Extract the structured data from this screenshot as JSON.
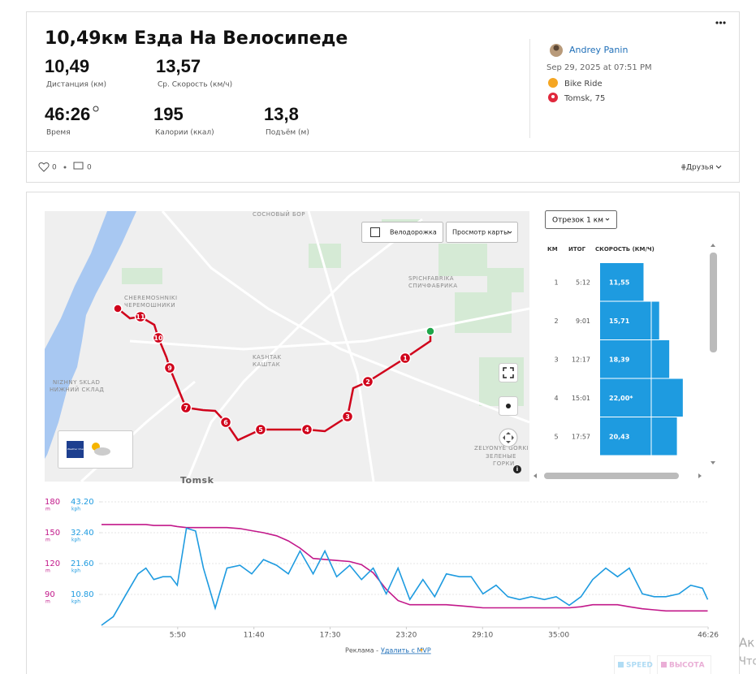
{
  "header": {
    "title": "10,49км Езда На Велосипеде",
    "stats": [
      {
        "value": "10,49",
        "label": "Дистанция (км)"
      },
      {
        "value": "13,57",
        "label": "Ср. Скорость (км/ч)"
      },
      {
        "value": "46:26",
        "label": "Время"
      },
      {
        "value": "195",
        "label": "Калории (ккал)"
      },
      {
        "value": "13,8",
        "label": "Подъём (м)"
      }
    ]
  },
  "athlete": {
    "name": "Andrey Panin",
    "date": "Sep 29, 2025 at 07:51 PM",
    "activity": "Bike Ride",
    "location": "Tomsk, 75"
  },
  "social": {
    "likes": "0",
    "comments": "0",
    "privacy": "Друзья"
  },
  "map": {
    "buttons": [
      "Велодорожка",
      "Просмотр карты"
    ],
    "places": [
      "СОСНОВЫЙ БОР",
      "CHEREMOSHNIKI",
      "ЧЕРЕМОШНИКИ",
      "SPICHFABRIKA",
      "СПИЧФАБРИКА",
      "KASHTAK",
      "КАШТАК",
      "NIZHNY SKLAD",
      "НИЖНИЙ СКЛАД",
      "ZELYONYE GORKI",
      "ЗЕЛЕНЫЕ",
      "ГОРКИ",
      "Tomsk"
    ],
    "markers": [
      "1",
      "2",
      "3",
      "4",
      "5",
      "6",
      "7",
      "9",
      "10",
      "11"
    ],
    "weather": "The Weather Channel"
  },
  "splits": {
    "selector": "Отрезок 1 км",
    "headers": [
      "КМ",
      "ИТОГ",
      "СКОРОСТЬ (КМ/Ч)"
    ],
    "km": [
      1,
      2,
      3,
      4,
      5
    ],
    "time": [
      "5:12",
      "9:01",
      "12:17",
      "15:01",
      "17:57"
    ],
    "speed": [
      11.55,
      15.71,
      18.39,
      22.0,
      20.43
    ],
    "speed_labels": [
      "11,55",
      "15,71",
      "18,39",
      "22,00*",
      "20,43"
    ]
  },
  "chart_data": {
    "type": "line",
    "x": [
      0,
      0.9,
      1.9,
      2.8,
      3.4,
      4.0,
      4.7,
      5.3,
      5.8,
      6.5,
      7.2,
      7.8,
      8.7,
      9.6,
      10.6,
      11.5,
      12.4,
      13.4,
      14.3,
      15.2,
      16.2,
      17.1,
      18.0,
      19.0,
      19.9,
      20.8,
      21.8,
      22.7,
      23.6,
      24.6,
      25.5,
      26.4,
      27.4,
      28.3,
      29.2,
      30.2,
      31.1,
      32.0,
      32.9,
      33.9,
      34.8,
      35.8,
      36.7,
      37.6,
      38.6,
      39.5,
      40.4,
      41.4,
      42.3,
      43.2,
      44.2,
      45.1,
      46.0,
      46.4
    ],
    "xlim": [
      0,
      46.43
    ],
    "xticks": [
      {
        "value": 5.833,
        "label": "5:50"
      },
      {
        "value": 11.667,
        "label": "11:40"
      },
      {
        "value": 17.5,
        "label": "17:30"
      },
      {
        "value": 23.333,
        "label": "23:20"
      },
      {
        "value": 29.167,
        "label": "29:10"
      },
      {
        "value": 35,
        "label": "35:00"
      },
      {
        "value": 46.433,
        "label": "46:26"
      }
    ],
    "ylim": [
      60,
      180
    ],
    "yticks": [
      90,
      120,
      150,
      180
    ],
    "y_unit": "m",
    "y2lim": [
      0,
      43.2
    ],
    "y2ticks": [
      {
        "value": 10.8,
        "label": "10.80"
      },
      {
        "value": 21.6,
        "label": "21.60"
      },
      {
        "value": 32.4,
        "label": "32.40"
      },
      {
        "value": 43.2,
        "label": "43.20"
      }
    ],
    "y2_unit": "kph",
    "grid": true,
    "series": [
      {
        "name": "ВЫСОТА",
        "color": "#c2188a",
        "values": [
          158,
          158,
          158,
          158,
          158,
          157,
          157,
          157,
          156,
          155,
          155,
          155,
          155,
          155,
          154,
          152,
          150,
          147,
          142,
          135,
          125,
          124,
          123,
          122,
          119,
          111,
          95,
          84,
          80,
          80,
          80,
          80,
          79,
          78,
          77,
          77,
          77,
          77,
          77,
          77,
          77,
          77,
          78,
          80,
          80,
          80,
          78,
          76,
          75,
          74,
          74,
          74,
          74,
          74
        ]
      },
      {
        "name": "SPEED",
        "color": "#1e9be0",
        "axis": "y2",
        "values": [
          0,
          3,
          11,
          18,
          20,
          16,
          17,
          17,
          14,
          34,
          33,
          20,
          6,
          20,
          21,
          18,
          23,
          21,
          18,
          26,
          18,
          26,
          17,
          21,
          16,
          20,
          11,
          20,
          9,
          16,
          10,
          18,
          17,
          17,
          11,
          14,
          10,
          9,
          10,
          9,
          10,
          7,
          10,
          16,
          20,
          17,
          20,
          11,
          10,
          10,
          11,
          14,
          13,
          9
        ]
      }
    ]
  },
  "ad": {
    "label": "Реклама -",
    "link": "Удалить с MVP"
  },
  "side_text": [
    "Ак",
    "Что"
  ]
}
